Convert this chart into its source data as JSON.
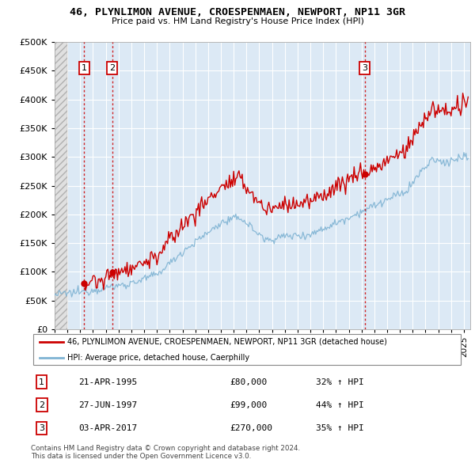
{
  "title": "46, PLYNLIMON AVENUE, CROESPENMAEN, NEWPORT, NP11 3GR",
  "subtitle": "Price paid vs. HM Land Registry's House Price Index (HPI)",
  "ylim": [
    0,
    500000
  ],
  "yticks": [
    0,
    50000,
    100000,
    150000,
    200000,
    250000,
    300000,
    350000,
    400000,
    450000,
    500000
  ],
  "xlim_start": 1993.0,
  "xlim_end": 2025.5,
  "sale_color": "#cc0000",
  "hpi_color": "#7fb3d3",
  "bg_color": "#dce9f5",
  "grid_color": "#ffffff",
  "purchases": [
    {
      "date_num": 1995.31,
      "price": 80000,
      "label": "1"
    },
    {
      "date_num": 1997.49,
      "price": 99000,
      "label": "2"
    },
    {
      "date_num": 2017.25,
      "price": 270000,
      "label": "3"
    }
  ],
  "legend_entries": [
    "46, PLYNLIMON AVENUE, CROESPENMAEN, NEWPORT, NP11 3GR (detached house)",
    "HPI: Average price, detached house, Caerphilly"
  ],
  "table_rows": [
    {
      "num": "1",
      "date": "21-APR-1995",
      "price": "£80,000",
      "hpi": "32% ↑ HPI"
    },
    {
      "num": "2",
      "date": "27-JUN-1997",
      "price": "£99,000",
      "hpi": "44% ↑ HPI"
    },
    {
      "num": "3",
      "date": "03-APR-2017",
      "price": "£270,000",
      "hpi": "35% ↑ HPI"
    }
  ],
  "footnote": "Contains HM Land Registry data © Crown copyright and database right 2024.\nThis data is licensed under the Open Government Licence v3.0."
}
